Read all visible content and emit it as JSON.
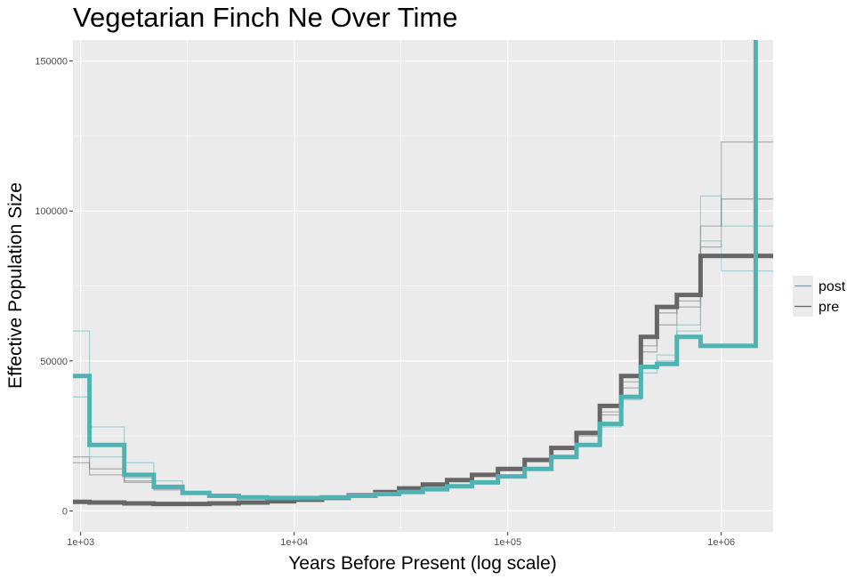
{
  "chart_data": {
    "type": "line",
    "step": true,
    "title": "Vegetarian Finch Ne Over Time",
    "xlabel": "Years Before Present (log scale)",
    "ylabel": "Effective Population Size",
    "x_scale": "log10",
    "xlim": [
      920,
      1750000
    ],
    "ylim": [
      -7000,
      157000
    ],
    "x_ticks": [
      {
        "value": 1000,
        "label": "1e+03"
      },
      {
        "value": 10000,
        "label": "1e+04"
      },
      {
        "value": 100000,
        "label": "1e+05"
      },
      {
        "value": 1000000,
        "label": "1e+06"
      }
    ],
    "y_ticks": [
      {
        "value": 0,
        "label": "0"
      },
      {
        "value": 50000,
        "label": "50000"
      },
      {
        "value": 100000,
        "label": "100000"
      },
      {
        "value": 150000,
        "label": "150000"
      }
    ],
    "grid": true,
    "legend": {
      "position": "right",
      "entries": [
        {
          "name": "post",
          "color": "#4fb3b3"
        },
        {
          "name": "pre",
          "color": "#666666"
        }
      ]
    },
    "series": [
      {
        "name": "pre",
        "role": "main",
        "color": "#666666",
        "x": [
          920,
          1100,
          1600,
          2200,
          3000,
          4000,
          5500,
          7500,
          10000,
          13500,
          18000,
          24000,
          31000,
          40000,
          52000,
          68000,
          90000,
          120000,
          160000,
          210000,
          270000,
          340000,
          420000,
          500000,
          620000,
          800000,
          1000000,
          1750000
        ],
        "y": [
          3000,
          2800,
          2500,
          2300,
          2300,
          2500,
          2800,
          3200,
          3700,
          4300,
          5200,
          6300,
          7500,
          8800,
          10300,
          12000,
          14000,
          17000,
          21000,
          26000,
          35000,
          45000,
          58000,
          68000,
          72000,
          85000,
          85000,
          85000
        ]
      },
      {
        "name": "post",
        "role": "main",
        "color": "#4fb3b3",
        "x": [
          920,
          1100,
          1600,
          2200,
          3000,
          4000,
          5500,
          7500,
          10000,
          13500,
          18000,
          24000,
          31000,
          40000,
          52000,
          68000,
          90000,
          120000,
          160000,
          210000,
          270000,
          340000,
          420000,
          500000,
          620000,
          800000,
          1000000,
          1450000
        ],
        "y": [
          45000,
          22000,
          12000,
          8000,
          6000,
          5000,
          4500,
          4300,
          4300,
          4500,
          5000,
          5600,
          6300,
          7200,
          8200,
          9500,
          11500,
          14000,
          18000,
          22000,
          29000,
          38000,
          48000,
          49000,
          58000,
          55000,
          55000,
          157000
        ]
      },
      {
        "name": "pre",
        "role": "replicate",
        "color": "#666666",
        "x": [
          920,
          1100,
          1600,
          2200,
          3000,
          4000,
          5500,
          7500,
          10000,
          13500,
          18000,
          24000,
          31000,
          40000,
          52000,
          68000,
          90000,
          120000,
          160000,
          210000,
          270000,
          340000,
          420000,
          500000,
          620000,
          800000,
          1000000,
          1750000
        ],
        "y": [
          18000,
          14000,
          10000,
          7500,
          6000,
          5000,
          4500,
          4300,
          4300,
          4600,
          5200,
          6300,
          7500,
          8800,
          10300,
          12000,
          14000,
          17000,
          21000,
          26000,
          33000,
          43000,
          55000,
          66000,
          70000,
          95000,
          123000,
          123000
        ]
      },
      {
        "name": "pre",
        "role": "replicate",
        "color": "#666666",
        "x": [
          920,
          1100,
          1600,
          2200,
          3000,
          4000,
          5500,
          7500,
          10000,
          13500,
          18000,
          24000,
          31000,
          40000,
          52000,
          68000,
          90000,
          120000,
          160000,
          210000,
          270000,
          340000,
          420000,
          500000,
          620000,
          800000,
          1000000,
          1750000
        ],
        "y": [
          16000,
          12000,
          9500,
          7000,
          5800,
          4900,
          4400,
          4200,
          4200,
          4500,
          5100,
          6100,
          7300,
          8600,
          10000,
          11700,
          13600,
          16500,
          20500,
          25000,
          32000,
          41000,
          53000,
          62000,
          68000,
          88000,
          104000,
          104000
        ]
      },
      {
        "name": "post",
        "role": "replicate",
        "color": "#4fb3b3",
        "x": [
          920,
          1100,
          1600,
          2200,
          3000,
          4000,
          5500,
          7500,
          10000,
          13500,
          18000,
          24000,
          31000,
          40000,
          52000,
          68000,
          90000,
          120000,
          160000,
          210000,
          270000,
          340000,
          420000,
          500000,
          620000,
          800000,
          1000000,
          1750000
        ],
        "y": [
          60000,
          28000,
          16000,
          10000,
          6500,
          5200,
          4600,
          4300,
          4300,
          4500,
          5000,
          5600,
          6300,
          7200,
          8200,
          9500,
          11500,
          14000,
          18000,
          22000,
          29000,
          38000,
          48000,
          52000,
          62000,
          105000,
          95000,
          95000
        ]
      },
      {
        "name": "post",
        "role": "replicate",
        "color": "#4fb3b3",
        "x": [
          920,
          1100,
          1600,
          2200,
          3000,
          4000,
          5500,
          7500,
          10000,
          13500,
          18000,
          24000,
          31000,
          40000,
          52000,
          68000,
          90000,
          120000,
          160000,
          210000,
          270000,
          340000,
          420000,
          500000,
          620000,
          800000,
          1000000,
          1750000
        ],
        "y": [
          38000,
          18000,
          11000,
          7500,
          5800,
          4900,
          4400,
          4200,
          4200,
          4400,
          4900,
          5500,
          6200,
          7100,
          8100,
          9400,
          11300,
          13800,
          17500,
          21500,
          28000,
          37000,
          46000,
          50000,
          60000,
          90000,
          80000,
          80000
        ]
      }
    ]
  }
}
